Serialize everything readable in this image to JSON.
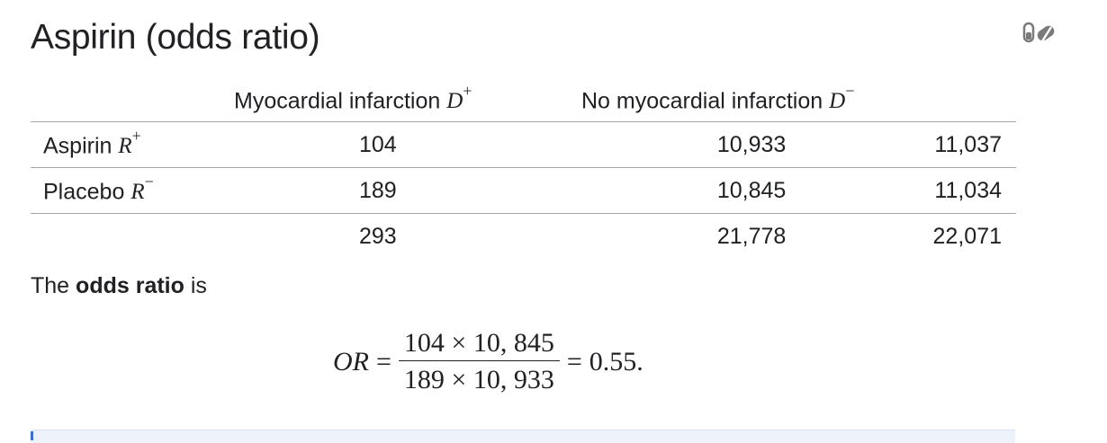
{
  "heading": "Aspirin (odds ratio)",
  "toolbar": {
    "icon": "pill-icon"
  },
  "table": {
    "headers": {
      "col1": "",
      "col2": {
        "text": "Myocardial infarction",
        "var": "D",
        "sup": "+"
      },
      "col3": {
        "text": "No myocardial infarction",
        "var": "D",
        "sup": "−"
      },
      "col4": ""
    },
    "rows": [
      {
        "label": {
          "text": "Aspirin",
          "var": "R",
          "sup": "+"
        },
        "v1": "104",
        "v2": "10,933",
        "total": "11,037"
      },
      {
        "label": {
          "text": "Placebo",
          "var": "R",
          "sup": "−"
        },
        "v1": "189",
        "v2": "10,845",
        "total": "11,034"
      },
      {
        "label": {
          "text": "",
          "var": "",
          "sup": ""
        },
        "v1": "293",
        "v2": "21,778",
        "total": "22,071"
      }
    ]
  },
  "sentence": {
    "pre": "The",
    "bold": "odds ratio",
    "post": "is"
  },
  "formula": {
    "lhs": "OR",
    "eq": "=",
    "numerator": "104 × 10, 845",
    "denominator": "189 × 10, 933",
    "eq2": "=",
    "result": "0.55."
  },
  "colors": {
    "text": "#202124",
    "rule": "#a8a8a8",
    "panel": "#eef3fb",
    "accent": "#3b6fd6"
  }
}
